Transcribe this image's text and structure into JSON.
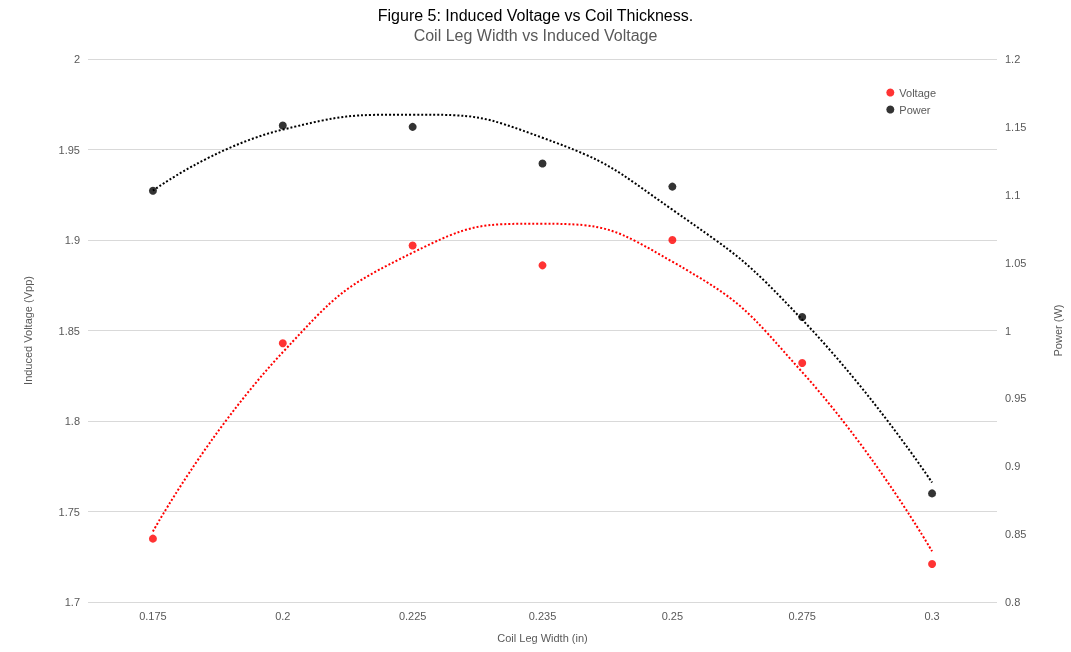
{
  "chart_data": {
    "type": "scatter",
    "title": "Coil Leg Width vs Induced Voltage",
    "xlabel": "Coil Leg Width (in)",
    "ylabel": "Induced Voltage (Vpp)",
    "y2label": "Power (W)",
    "annotations": [
      "Figure 5: Induced Voltage vs Coil Thickness."
    ],
    "categories": [
      "0.175",
      "0.2",
      "0.225",
      "0.235",
      "0.25",
      "0.275",
      "0.3"
    ],
    "series": [
      {
        "name": "Voltage",
        "color": "#ff0000",
        "values": [
          1.735,
          1.843,
          1.897,
          1.886,
          1.9,
          1.832,
          1.721
        ]
      },
      {
        "name": "Power",
        "color": "#000000",
        "axis": "y2",
        "values": [
          1.103,
          1.151,
          1.15,
          1.123,
          1.106,
          1.01,
          0.88
        ]
      },
      {
        "type": "line",
        "color": "#ff0000",
        "line_style": "dotted",
        "marker": "none",
        "values": [
          1.739,
          1.838,
          1.893,
          1.909,
          1.888,
          1.827,
          1.728
        ]
      },
      {
        "type": "line",
        "color": "#000000",
        "line_style": "dotted",
        "marker": "none",
        "axis": "y2",
        "values": [
          1.103,
          1.148,
          1.159,
          1.142,
          1.089,
          1.008,
          0.888
        ]
      }
    ],
    "ylim": [
      1.7,
      2
    ],
    "yticks": [
      1.7,
      1.75,
      1.8,
      1.85,
      1.9,
      1.95,
      2
    ],
    "y2lim": [
      0.8,
      1.2
    ],
    "y2ticks": [
      0.8,
      0.85,
      0.9,
      0.95,
      1,
      1.05,
      1.1,
      1.15,
      1.2
    ],
    "grid": "y",
    "legend": "top right",
    "marker": "circle"
  }
}
